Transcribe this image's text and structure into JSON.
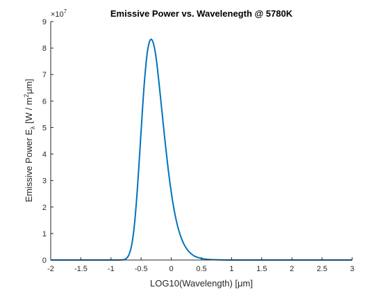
{
  "chart_data": {
    "type": "line",
    "title": "Emissive Power vs. Wavelenegth @ 5780K",
    "xlabel_main": "LOG10(Wavelength) [",
    "xlabel_unit": "μm",
    "xlabel_close": "]",
    "ylabel_main": "Emissive Power E",
    "ylabel_sub": "λ",
    "ylabel_units_a": " [W / m",
    "ylabel_sup": "2",
    "ylabel_unit": "μm",
    "ylabel_close": "]",
    "y_exponent_prefix": "×10",
    "y_exponent": "7",
    "xlim": [
      -2,
      3
    ],
    "ylim": [
      0,
      9
    ],
    "y_scale_factor": 10000000,
    "xticks": [
      -2,
      -1.5,
      -1,
      -0.5,
      0,
      0.5,
      1,
      1.5,
      2,
      2.5,
      3
    ],
    "xtick_labels": [
      "-2",
      "-1.5",
      "-1",
      "-0.5",
      "0",
      "0.5",
      "1",
      "1.5",
      "2",
      "2.5",
      "3"
    ],
    "yticks": [
      0,
      1,
      2,
      3,
      4,
      5,
      6,
      7,
      8,
      9
    ],
    "ytick_labels": [
      "0",
      "1",
      "2",
      "3",
      "4",
      "5",
      "6",
      "7",
      "8",
      "9"
    ],
    "grid": false,
    "series": [
      {
        "color": "#0072BD",
        "x": [
          -2,
          -1.5,
          -1,
          -0.9,
          -0.8,
          -0.75,
          -0.7,
          -0.65,
          -0.6,
          -0.55,
          -0.5,
          -0.45,
          -0.4,
          -0.35,
          -0.3,
          -0.25,
          -0.2,
          -0.15,
          -0.1,
          -0.05,
          0,
          0.05,
          0.1,
          0.15,
          0.2,
          0.25,
          0.3,
          0.35,
          0.4,
          0.5,
          0.6,
          0.7,
          0.8,
          0.9,
          1,
          1.5,
          2,
          2.5,
          3
        ],
        "y": [
          0,
          0,
          0,
          0,
          0.01,
          0.05,
          0.21,
          0.65,
          1.6,
          3.1,
          4.9,
          6.6,
          7.8,
          8.3,
          8.2,
          7.6,
          6.6,
          5.5,
          4.4,
          3.4,
          2.55,
          1.85,
          1.32,
          0.93,
          0.64,
          0.44,
          0.3,
          0.2,
          0.13,
          0.06,
          0.025,
          0.012,
          0.005,
          0.002,
          0.001,
          0,
          0,
          0,
          0
        ]
      }
    ]
  }
}
